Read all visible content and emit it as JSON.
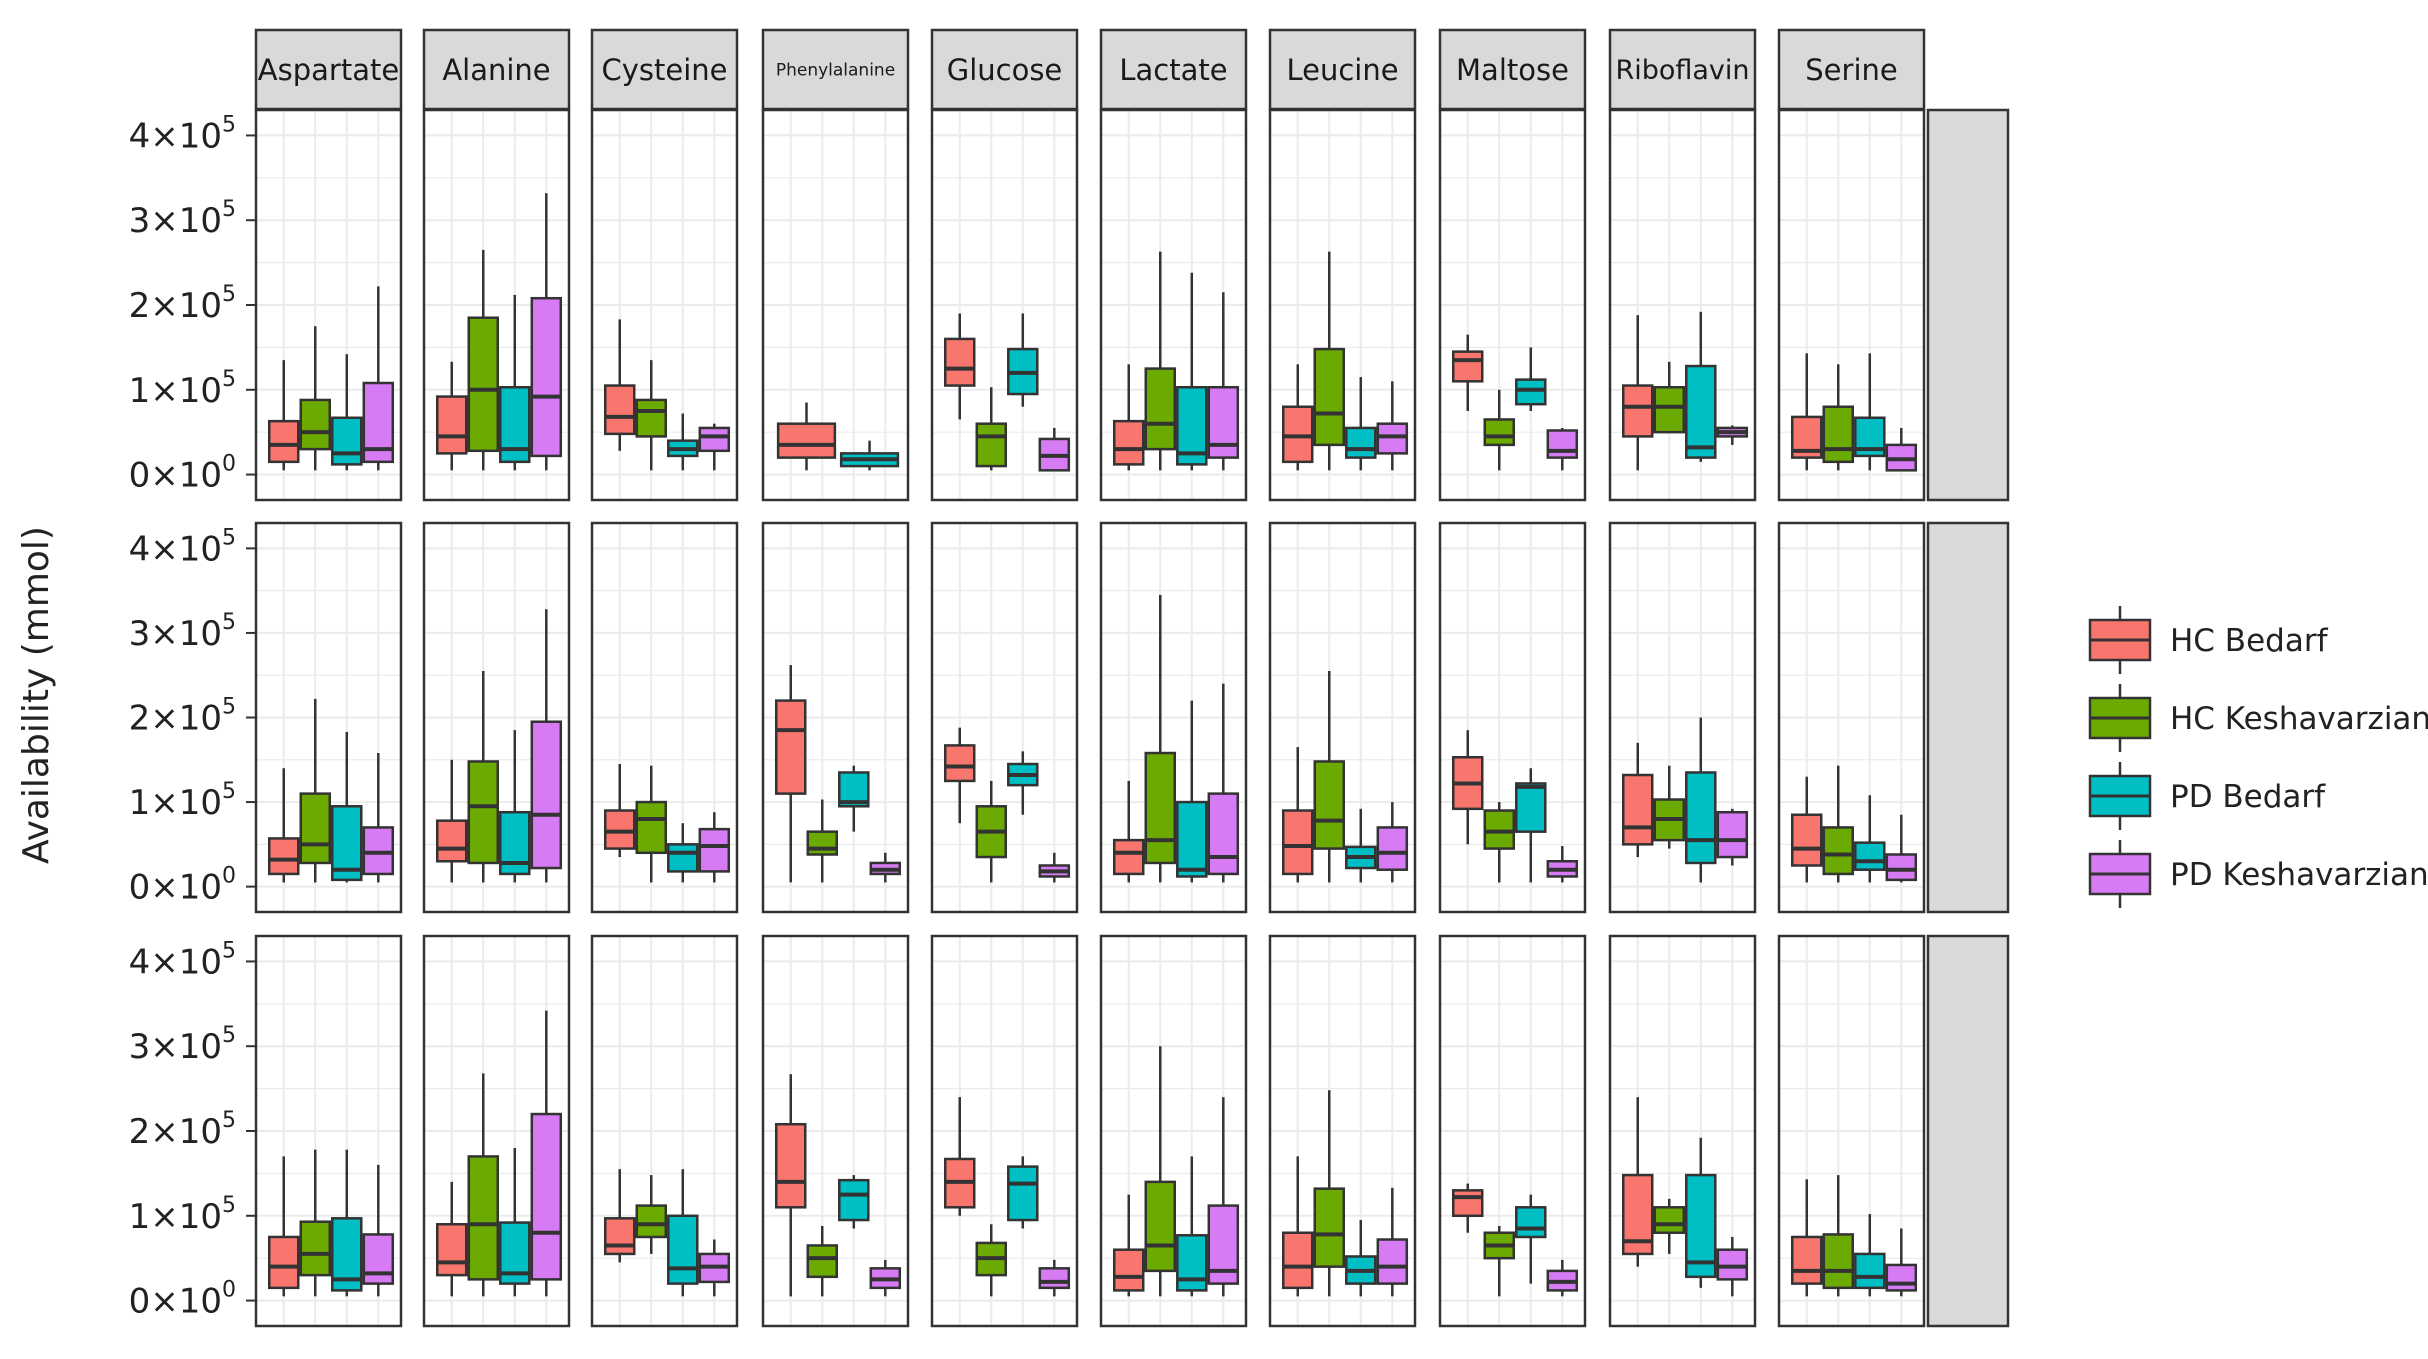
{
  "chart_data": {
    "type": "boxplot",
    "title": "",
    "xlabel": "",
    "ylabel": "Availability (mmol)",
    "ylim": [
      -30000,
      430000
    ],
    "y_ticks": [
      {
        "value": 0,
        "mantissa": "0",
        "exp": "0"
      },
      {
        "value": 100000,
        "mantissa": "1",
        "exp": "5"
      },
      {
        "value": 200000,
        "mantissa": "2",
        "exp": "5"
      },
      {
        "value": 300000,
        "mantissa": "3",
        "exp": "5"
      },
      {
        "value": 400000,
        "mantissa": "4",
        "exp": "5"
      }
    ],
    "y_tick_times": "×",
    "y_tick_base": "10",
    "grid": true,
    "legend_position": "right",
    "panels": [
      "Aspartate",
      "Alanine",
      "Cysteine",
      "Phenylalanine",
      "Glucose",
      "Lactate",
      "Leucine",
      "Maltose",
      "Riboflavin",
      "Serine"
    ],
    "series": [
      {
        "name": "HC Bedarf",
        "color": "#F8766D"
      },
      {
        "name": "HC Keshavarzian",
        "color": "#6BAA00"
      },
      {
        "name": "PD Bedarf",
        "color": "#00BFC4"
      },
      {
        "name": "PD Keshavarzian",
        "color": "#D77BF4"
      }
    ],
    "rows": [
      {
        "Aspartate": [
          [
            5000,
            15000,
            35000,
            63000,
            135000
          ],
          [
            5000,
            30000,
            50000,
            88000,
            175000
          ],
          [
            5000,
            12000,
            25000,
            67000,
            142000
          ],
          [
            5000,
            15000,
            30000,
            108000,
            222000
          ]
        ],
        "Alanine": [
          [
            5000,
            25000,
            45000,
            92000,
            133000
          ],
          [
            5000,
            28000,
            100000,
            185000,
            265000
          ],
          [
            5000,
            15000,
            30000,
            103000,
            212000
          ],
          [
            5000,
            22000,
            92000,
            208000,
            332000
          ]
        ],
        "Cysteine": [
          [
            28000,
            48000,
            68000,
            105000,
            183000
          ],
          [
            5000,
            45000,
            75000,
            88000,
            135000
          ],
          [
            5000,
            22000,
            30000,
            40000,
            72000
          ],
          [
            5000,
            28000,
            45000,
            55000,
            60000
          ]
        ],
        "Phenylalanine": [
          [
            5000,
            20000,
            35000,
            60000,
            85000
          ],
          null,
          [
            5000,
            10000,
            18000,
            25000,
            40000
          ],
          null
        ],
        "Glucose": [
          [
            65000,
            105000,
            125000,
            160000,
            190000
          ],
          [
            5000,
            10000,
            45000,
            60000,
            103000
          ],
          [
            80000,
            95000,
            120000,
            148000,
            190000
          ],
          [
            5000,
            5000,
            22000,
            42000,
            55000
          ]
        ],
        "Lactate": [
          [
            5000,
            12000,
            30000,
            63000,
            130000
          ],
          [
            5000,
            30000,
            60000,
            125000,
            263000
          ],
          [
            5000,
            12000,
            25000,
            103000,
            238000
          ],
          [
            5000,
            20000,
            35000,
            103000,
            215000
          ]
        ],
        "Leucine": [
          [
            5000,
            15000,
            45000,
            80000,
            130000
          ],
          [
            5000,
            35000,
            72000,
            148000,
            263000
          ],
          [
            5000,
            20000,
            30000,
            55000,
            115000
          ],
          [
            5000,
            25000,
            45000,
            60000,
            110000
          ]
        ],
        "Maltose": [
          [
            75000,
            110000,
            135000,
            145000,
            165000
          ],
          [
            5000,
            35000,
            45000,
            65000,
            100000
          ],
          [
            75000,
            83000,
            100000,
            112000,
            150000
          ],
          [
            5000,
            20000,
            28000,
            52000,
            55000
          ]
        ],
        "Riboflavin": [
          [
            5000,
            45000,
            80000,
            105000,
            188000
          ],
          [
            50000,
            50000,
            80000,
            103000,
            133000
          ],
          [
            15000,
            20000,
            32000,
            128000,
            192000
          ],
          [
            35000,
            45000,
            50000,
            55000,
            58000
          ]
        ],
        "Serine": [
          [
            5000,
            20000,
            28000,
            68000,
            143000
          ],
          [
            5000,
            15000,
            30000,
            80000,
            130000
          ],
          [
            5000,
            22000,
            30000,
            67000,
            143000
          ],
          [
            5000,
            5000,
            18000,
            35000,
            55000
          ]
        ]
      },
      {
        "Aspartate": [
          [
            5000,
            15000,
            32000,
            57000,
            140000
          ],
          [
            5000,
            28000,
            50000,
            110000,
            222000
          ],
          [
            5000,
            8000,
            20000,
            95000,
            183000
          ],
          [
            5000,
            15000,
            40000,
            70000,
            158000
          ]
        ],
        "Alanine": [
          [
            5000,
            30000,
            45000,
            78000,
            150000
          ],
          [
            5000,
            28000,
            95000,
            148000,
            255000
          ],
          [
            5000,
            15000,
            28000,
            88000,
            185000
          ],
          [
            5000,
            22000,
            85000,
            195000,
            328000
          ]
        ],
        "Cysteine": [
          [
            35000,
            45000,
            65000,
            90000,
            145000
          ],
          [
            5000,
            40000,
            80000,
            100000,
            143000
          ],
          [
            5000,
            18000,
            40000,
            50000,
            75000
          ],
          [
            5000,
            18000,
            48000,
            68000,
            88000
          ]
        ],
        "Phenylalanine": [
          [
            5000,
            110000,
            185000,
            220000,
            262000
          ],
          [
            5000,
            38000,
            45000,
            65000,
            103000
          ],
          [
            65000,
            95000,
            100000,
            135000,
            143000
          ],
          [
            5000,
            15000,
            20000,
            28000,
            40000
          ]
        ],
        "Glucose": [
          [
            75000,
            125000,
            142000,
            167000,
            188000
          ],
          [
            5000,
            35000,
            65000,
            95000,
            125000
          ],
          [
            85000,
            120000,
            132000,
            145000,
            160000
          ],
          [
            5000,
            12000,
            18000,
            25000,
            40000
          ]
        ],
        "Lactate": [
          [
            5000,
            15000,
            40000,
            55000,
            125000
          ],
          [
            5000,
            28000,
            55000,
            158000,
            345000
          ],
          [
            5000,
            12000,
            20000,
            100000,
            220000
          ],
          [
            5000,
            15000,
            35000,
            110000,
            240000
          ]
        ],
        "Leucine": [
          [
            5000,
            15000,
            48000,
            90000,
            165000
          ],
          [
            5000,
            45000,
            78000,
            148000,
            255000
          ],
          [
            5000,
            22000,
            35000,
            47000,
            92000
          ],
          [
            5000,
            20000,
            40000,
            70000,
            100000
          ]
        ],
        "Maltose": [
          [
            50000,
            92000,
            122000,
            153000,
            185000
          ],
          [
            5000,
            45000,
            65000,
            90000,
            100000
          ],
          [
            5000,
            65000,
            118000,
            122000,
            140000
          ],
          [
            5000,
            12000,
            20000,
            30000,
            48000
          ]
        ],
        "Riboflavin": [
          [
            35000,
            50000,
            70000,
            132000,
            170000
          ],
          [
            45000,
            55000,
            80000,
            103000,
            143000
          ],
          [
            5000,
            28000,
            55000,
            135000,
            200000
          ],
          [
            25000,
            35000,
            55000,
            88000,
            92000
          ]
        ],
        "Serine": [
          [
            5000,
            25000,
            45000,
            85000,
            130000
          ],
          [
            5000,
            15000,
            38000,
            70000,
            143000
          ],
          [
            5000,
            20000,
            30000,
            52000,
            108000
          ],
          [
            5000,
            8000,
            20000,
            38000,
            85000
          ]
        ]
      },
      {
        "Aspartate": [
          [
            5000,
            15000,
            40000,
            75000,
            170000
          ],
          [
            5000,
            30000,
            55000,
            93000,
            178000
          ],
          [
            5000,
            12000,
            25000,
            97000,
            178000
          ],
          [
            5000,
            20000,
            32000,
            78000,
            160000
          ]
        ],
        "Alanine": [
          [
            5000,
            30000,
            45000,
            90000,
            140000
          ],
          [
            5000,
            25000,
            90000,
            170000,
            268000
          ],
          [
            5000,
            20000,
            32000,
            92000,
            180000
          ],
          [
            5000,
            25000,
            80000,
            220000,
            342000
          ]
        ],
        "Cysteine": [
          [
            45000,
            55000,
            65000,
            97000,
            155000
          ],
          [
            55000,
            75000,
            90000,
            112000,
            148000
          ],
          [
            5000,
            20000,
            38000,
            100000,
            155000
          ],
          [
            5000,
            22000,
            40000,
            55000,
            72000
          ]
        ],
        "Phenylalanine": [
          [
            5000,
            110000,
            140000,
            208000,
            267000
          ],
          [
            5000,
            28000,
            50000,
            65000,
            88000
          ],
          [
            85000,
            95000,
            125000,
            142000,
            148000
          ],
          [
            5000,
            15000,
            25000,
            38000,
            48000
          ]
        ],
        "Glucose": [
          [
            100000,
            110000,
            140000,
            167000,
            240000
          ],
          [
            5000,
            30000,
            50000,
            68000,
            90000
          ],
          [
            85000,
            95000,
            138000,
            158000,
            170000
          ],
          [
            5000,
            15000,
            22000,
            38000,
            48000
          ]
        ],
        "Lactate": [
          [
            5000,
            12000,
            28000,
            60000,
            125000
          ],
          [
            5000,
            35000,
            65000,
            140000,
            300000
          ],
          [
            5000,
            12000,
            25000,
            77000,
            170000
          ],
          [
            5000,
            20000,
            35000,
            112000,
            240000
          ]
        ],
        "Leucine": [
          [
            5000,
            15000,
            40000,
            80000,
            170000
          ],
          [
            5000,
            40000,
            78000,
            132000,
            248000
          ],
          [
            5000,
            20000,
            35000,
            52000,
            95000
          ],
          [
            5000,
            20000,
            40000,
            72000,
            133000
          ]
        ],
        "Maltose": [
          [
            80000,
            100000,
            122000,
            130000,
            138000
          ],
          [
            5000,
            50000,
            65000,
            80000,
            88000
          ],
          [
            20000,
            75000,
            85000,
            110000,
            125000
          ],
          [
            5000,
            12000,
            22000,
            35000,
            48000
          ]
        ],
        "Riboflavin": [
          [
            40000,
            55000,
            70000,
            148000,
            240000
          ],
          [
            55000,
            80000,
            90000,
            110000,
            120000
          ],
          [
            15000,
            28000,
            45000,
            148000,
            192000
          ],
          [
            5000,
            25000,
            40000,
            60000,
            75000
          ]
        ],
        "Serine": [
          [
            5000,
            20000,
            35000,
            75000,
            143000
          ],
          [
            5000,
            15000,
            35000,
            78000,
            148000
          ],
          [
            5000,
            15000,
            28000,
            55000,
            102000
          ],
          [
            5000,
            12000,
            20000,
            42000,
            85000
          ]
        ]
      }
    ]
  }
}
